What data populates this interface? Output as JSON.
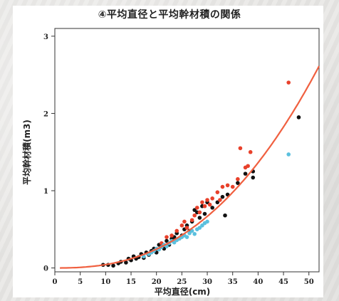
{
  "chart_data": {
    "type": "scatter",
    "title": "④平均直径と平均幹材積の関係",
    "xlabel": "平均直径(cm)",
    "ylabel": "平均幹材積(m3)",
    "xlim": [
      0,
      52
    ],
    "ylim": [
      -0.05,
      3.1
    ],
    "xticks": [
      0,
      5,
      10,
      15,
      20,
      25,
      30,
      35,
      40,
      45,
      50
    ],
    "yticks": [
      0,
      1,
      2,
      3
    ],
    "grid": false,
    "legend": "none",
    "series": [
      {
        "color": "#111111",
        "points": [
          [
            9.5,
            0.04
          ],
          [
            10.5,
            0.04
          ],
          [
            11.5,
            0.03
          ],
          [
            12.5,
            0.06
          ],
          [
            13,
            0.08
          ],
          [
            14,
            0.07
          ],
          [
            14.5,
            0.12
          ],
          [
            15,
            0.1
          ],
          [
            15.5,
            0.15
          ],
          [
            16,
            0.12
          ],
          [
            16.5,
            0.14
          ],
          [
            17,
            0.18
          ],
          [
            17.5,
            0.13
          ],
          [
            18,
            0.2
          ],
          [
            18.5,
            0.17
          ],
          [
            19,
            0.22
          ],
          [
            19.5,
            0.25
          ],
          [
            20,
            0.2
          ],
          [
            20.5,
            0.3
          ],
          [
            21,
            0.28
          ],
          [
            21.5,
            0.25
          ],
          [
            22,
            0.35
          ],
          [
            22.5,
            0.3
          ],
          [
            23,
            0.38
          ],
          [
            23.5,
            0.4
          ],
          [
            24,
            0.45
          ],
          [
            24.5,
            0.38
          ],
          [
            25,
            0.42
          ],
          [
            25.5,
            0.5
          ],
          [
            26,
            0.55
          ],
          [
            26.5,
            0.48
          ],
          [
            27,
            0.6
          ],
          [
            27.5,
            0.75
          ],
          [
            28,
            0.72
          ],
          [
            28.5,
            0.65
          ],
          [
            29,
            0.8
          ],
          [
            29.5,
            0.7
          ],
          [
            30,
            0.85
          ],
          [
            31,
            0.78
          ],
          [
            32,
            0.85
          ],
          [
            33,
            0.92
          ],
          [
            33.5,
            0.68
          ],
          [
            34,
            0.95
          ],
          [
            36,
            1.1
          ],
          [
            37.5,
            1.22
          ],
          [
            39,
            1.17
          ],
          [
            39,
            1.25
          ],
          [
            48,
            1.95
          ]
        ]
      },
      {
        "color": "#e8412b",
        "points": [
          [
            21,
            0.32
          ],
          [
            22,
            0.4
          ],
          [
            23,
            0.42
          ],
          [
            24,
            0.48
          ],
          [
            25,
            0.55
          ],
          [
            25.5,
            0.6
          ],
          [
            26,
            0.52
          ],
          [
            27,
            0.62
          ],
          [
            27.5,
            0.68
          ],
          [
            28,
            0.78
          ],
          [
            28.5,
            0.72
          ],
          [
            29,
            0.85
          ],
          [
            29.5,
            0.8
          ],
          [
            30,
            0.88
          ],
          [
            30.5,
            0.82
          ],
          [
            31,
            0.9
          ],
          [
            32,
            0.98
          ],
          [
            32.5,
            0.88
          ],
          [
            33,
            1.05
          ],
          [
            34,
            1.07
          ],
          [
            35,
            1.05
          ],
          [
            36,
            1.15
          ],
          [
            36.5,
            1.55
          ],
          [
            37.5,
            1.3
          ],
          [
            38,
            1.32
          ],
          [
            38.5,
            1.5
          ],
          [
            46,
            2.4
          ]
        ]
      },
      {
        "color": "#5bc0de",
        "points": [
          [
            17.5,
            0.15
          ],
          [
            18.5,
            0.18
          ],
          [
            19,
            0.2
          ],
          [
            19.5,
            0.22
          ],
          [
            20,
            0.25
          ],
          [
            20.5,
            0.24
          ],
          [
            21,
            0.27
          ],
          [
            21.5,
            0.3
          ],
          [
            22,
            0.28
          ],
          [
            22.5,
            0.32
          ],
          [
            23,
            0.35
          ],
          [
            23.5,
            0.33
          ],
          [
            24,
            0.36
          ],
          [
            24.5,
            0.38
          ],
          [
            25,
            0.4
          ],
          [
            25.5,
            0.42
          ],
          [
            26,
            0.4
          ],
          [
            26.5,
            0.45
          ],
          [
            27,
            0.48
          ],
          [
            27.5,
            0.44
          ],
          [
            28,
            0.5
          ],
          [
            28.5,
            0.52
          ],
          [
            29,
            0.55
          ],
          [
            29.5,
            0.58
          ],
          [
            30,
            0.6
          ],
          [
            46,
            1.47
          ]
        ]
      }
    ],
    "fit_curve": {
      "color": "#f06040",
      "form": "y = a * x^b",
      "a": 0.000145,
      "b": 2.48,
      "x_range": [
        1,
        52
      ]
    }
  }
}
